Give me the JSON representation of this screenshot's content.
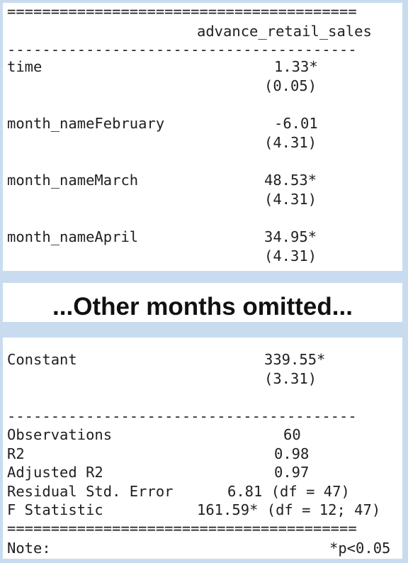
{
  "table_top": {
    "rule_double": "========================================",
    "header": "advance_retail_sales",
    "rule_single": "----------------------------------------",
    "rows": [
      {
        "label": "time",
        "coef": "1.33*",
        "se": "(0.05)"
      },
      {
        "label": "month_nameFebruary",
        "coef": "-6.01",
        "se": "(4.31)"
      },
      {
        "label": "month_nameMarch",
        "coef": "48.53*",
        "se": "(4.31)"
      },
      {
        "label": "month_nameApril",
        "coef": "34.95*",
        "se": "(4.31)"
      }
    ]
  },
  "omitted_text": "...Other months omitted...",
  "table_bottom": {
    "constant": {
      "label": "Constant",
      "coef": "339.55*",
      "se": "(3.31)"
    },
    "rule_single": "----------------------------------------",
    "stats": [
      {
        "label": "Observations",
        "value": "60"
      },
      {
        "label": "R2",
        "value": "0.98"
      },
      {
        "label": "Adjusted R2",
        "value": "0.97"
      },
      {
        "label": "Residual Std. Error",
        "value": "6.81 (df = 47)"
      },
      {
        "label": "F Statistic",
        "value": "161.59* (df = 12; 47)"
      }
    ],
    "rule_double": "========================================",
    "note_label": "Note:",
    "note_value": "*p<0.05"
  }
}
